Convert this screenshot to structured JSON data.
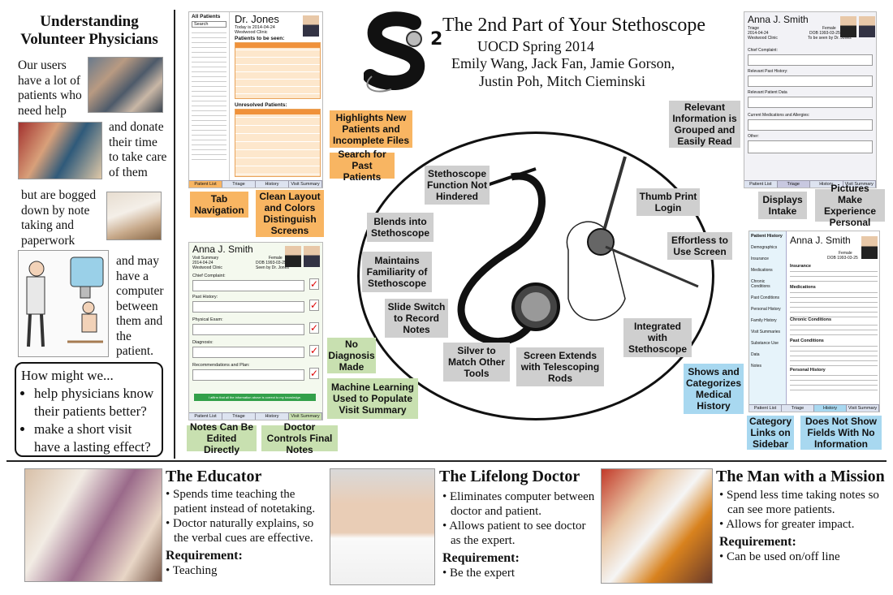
{
  "header": {
    "title": "The 2nd Part of Your Stethoscope",
    "subtitle": "UOCD Spring 2014",
    "authors_line1": "Emily Wang, Jack Fan, Jamie Gorson,",
    "authors_line2": "Justin Poh, Mitch Cieminski",
    "logo_letter": "S",
    "logo_sup": "2"
  },
  "left": {
    "title_l1": "Understanding",
    "title_l2": "Volunteer Physicians",
    "t1": "Our users have a lot of patients who need help",
    "t2": "and donate their time to take care of them",
    "t3": "but are bogged down by note taking and paperwork",
    "t4": "and may have a computer between them and the patient.",
    "hmw_title": "How might we...",
    "hmw_items": [
      "help physicians know their patients better?",
      "make a short visit have a lasting effect?"
    ]
  },
  "mock1": {
    "sidebar_title": "All Patients",
    "search": "Search",
    "doctor": "Dr. Jones",
    "today": "Today is 2014-04-24",
    "clinic": "Westwood Clinic",
    "tbs": "Patients to be seen:",
    "unresolved": "Unresolved Patients:"
  },
  "mock2": {
    "name": "Anna J. Smith",
    "sub": "Visit Summary",
    "date": "2014-04-24",
    "clinic": "Westwood Clinic",
    "gender": "Female",
    "dob": "DOB 1993-03-25",
    "seen": "Seen by Dr. Jones",
    "fields": [
      "Chief Complaint:",
      "Past History:",
      "Physical Exam:",
      "Diagnosis:",
      "Recommendations and Plan:"
    ],
    "confirm": "I affirm that all the information above is correct to my knowledge."
  },
  "mock3": {
    "name": "Anna J. Smith",
    "sub": "Triage",
    "date": "2014-04-24",
    "clinic": "Westwood Clinic",
    "gender": "Female",
    "dob": "DOB 1993-03-25",
    "seen": "To be seen by Dr. Jones",
    "fields": [
      "Chief Complaint:",
      "Relevant Past History:",
      "Relevant Patient Data",
      "Current Medications and Allergies:",
      "Other:"
    ]
  },
  "mock4": {
    "name": "Anna J. Smith",
    "gender": "Female",
    "dob": "DOB 1993-03-25",
    "sidebar": [
      "Patient History",
      "Demographics",
      "Insurance",
      "Medications",
      "Chronic Conditions",
      "Past Conditions",
      "Personal History",
      "Family History",
      "Visit Summaries",
      "Substance Use",
      "Data",
      "Notes"
    ],
    "sections": [
      "Insurance",
      "Medications",
      "Chronic Conditions",
      "Past Conditions",
      "Personal History"
    ]
  },
  "tabs": [
    "Patient List",
    "Triage",
    "History",
    "Visit Summary"
  ],
  "callouts": {
    "c_highlights": "Highlights New Patients and Incomplete Files",
    "c_search": "Search for Past Patients",
    "c_tabnav": "Tab Navigation",
    "c_clean": "Clean Layout and Colors Distinguish Screens",
    "c_relevant": "Relevant Information is Grouped and Easily Read",
    "c_intake": "Displays Intake",
    "c_pictures": "Pictures Make Experience Personal",
    "c_nodiag": "No Diagnosis Made",
    "c_ml": "Machine Learning Used to Populate Visit Summary",
    "c_notes": "Notes Can Be Edited Directly",
    "c_controls": "Doctor Controls Final Notes",
    "c_shows": "Shows and Categorizes Medical History",
    "c_catlinks": "Category Links on Sidebar",
    "c_noshow": "Does Not Show Fields With No Information",
    "c_steth": "Stethoscope Function Not Hindered",
    "c_blends": "Blends into Stethoscope",
    "c_maint": "Maintains Familiarity of Stethoscope",
    "c_slide": "Slide Switch to Record Notes",
    "c_silver": "Silver to Match Other Tools",
    "c_screen": "Screen Extends with Telescoping Rods",
    "c_thumb": "Thumb Print Login",
    "c_effort": "Effortless to Use Screen",
    "c_integr": "Integrated with Stethoscope"
  },
  "personas": [
    {
      "title": "The Educator",
      "bullets": [
        "Spends time teaching the patient instead of notetaking.",
        "Doctor naturally explains, so the verbal cues are effective."
      ],
      "req_label": "Requirement:",
      "req": "Teaching"
    },
    {
      "title": "The Lifelong Doctor",
      "bullets": [
        "Eliminates computer between doctor and patient.",
        "Allows patient to see doctor as the expert."
      ],
      "req_label": "Requirement:",
      "req": "Be the expert"
    },
    {
      "title": "The Man with a Mission",
      "bullets": [
        "Spend less time taking notes so can see more patients.",
        "Allows for greater impact."
      ],
      "req_label": "Requirement:",
      "req": "Can be used on/off line"
    }
  ]
}
